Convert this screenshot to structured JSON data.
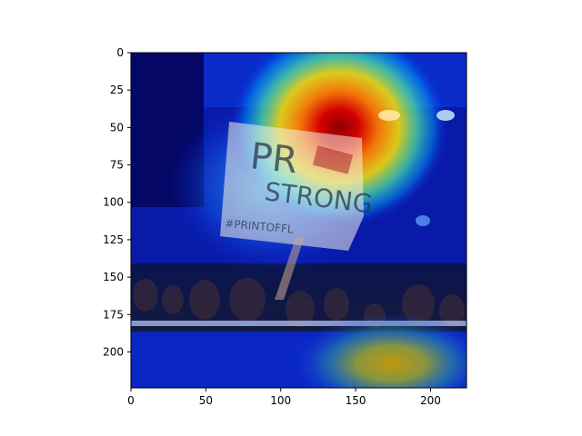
{
  "chart_data": {
    "type": "heatmap",
    "title": "",
    "xlabel": "",
    "ylabel": "",
    "xlim": [
      0,
      224
    ],
    "ylim": [
      224,
      0
    ],
    "xticks": [
      0,
      50,
      100,
      150,
      200
    ],
    "yticks": [
      0,
      25,
      50,
      75,
      100,
      125,
      150,
      175,
      200
    ],
    "colormap": "jet",
    "grid": false,
    "hotspots": [
      {
        "x": 140,
        "y": 48,
        "intensity": 1.0
      },
      {
        "x": 175,
        "y": 212,
        "intensity": 0.62
      },
      {
        "x": 95,
        "y": 20,
        "intensity": 0.25
      },
      {
        "x": 95,
        "y": 100,
        "intensity": 0.35
      }
    ],
    "background_photo": {
      "sign_text_line1": "PR",
      "sign_text_line2": "STRONG",
      "sign_text_line3": "#PRINTOFFL"
    }
  }
}
